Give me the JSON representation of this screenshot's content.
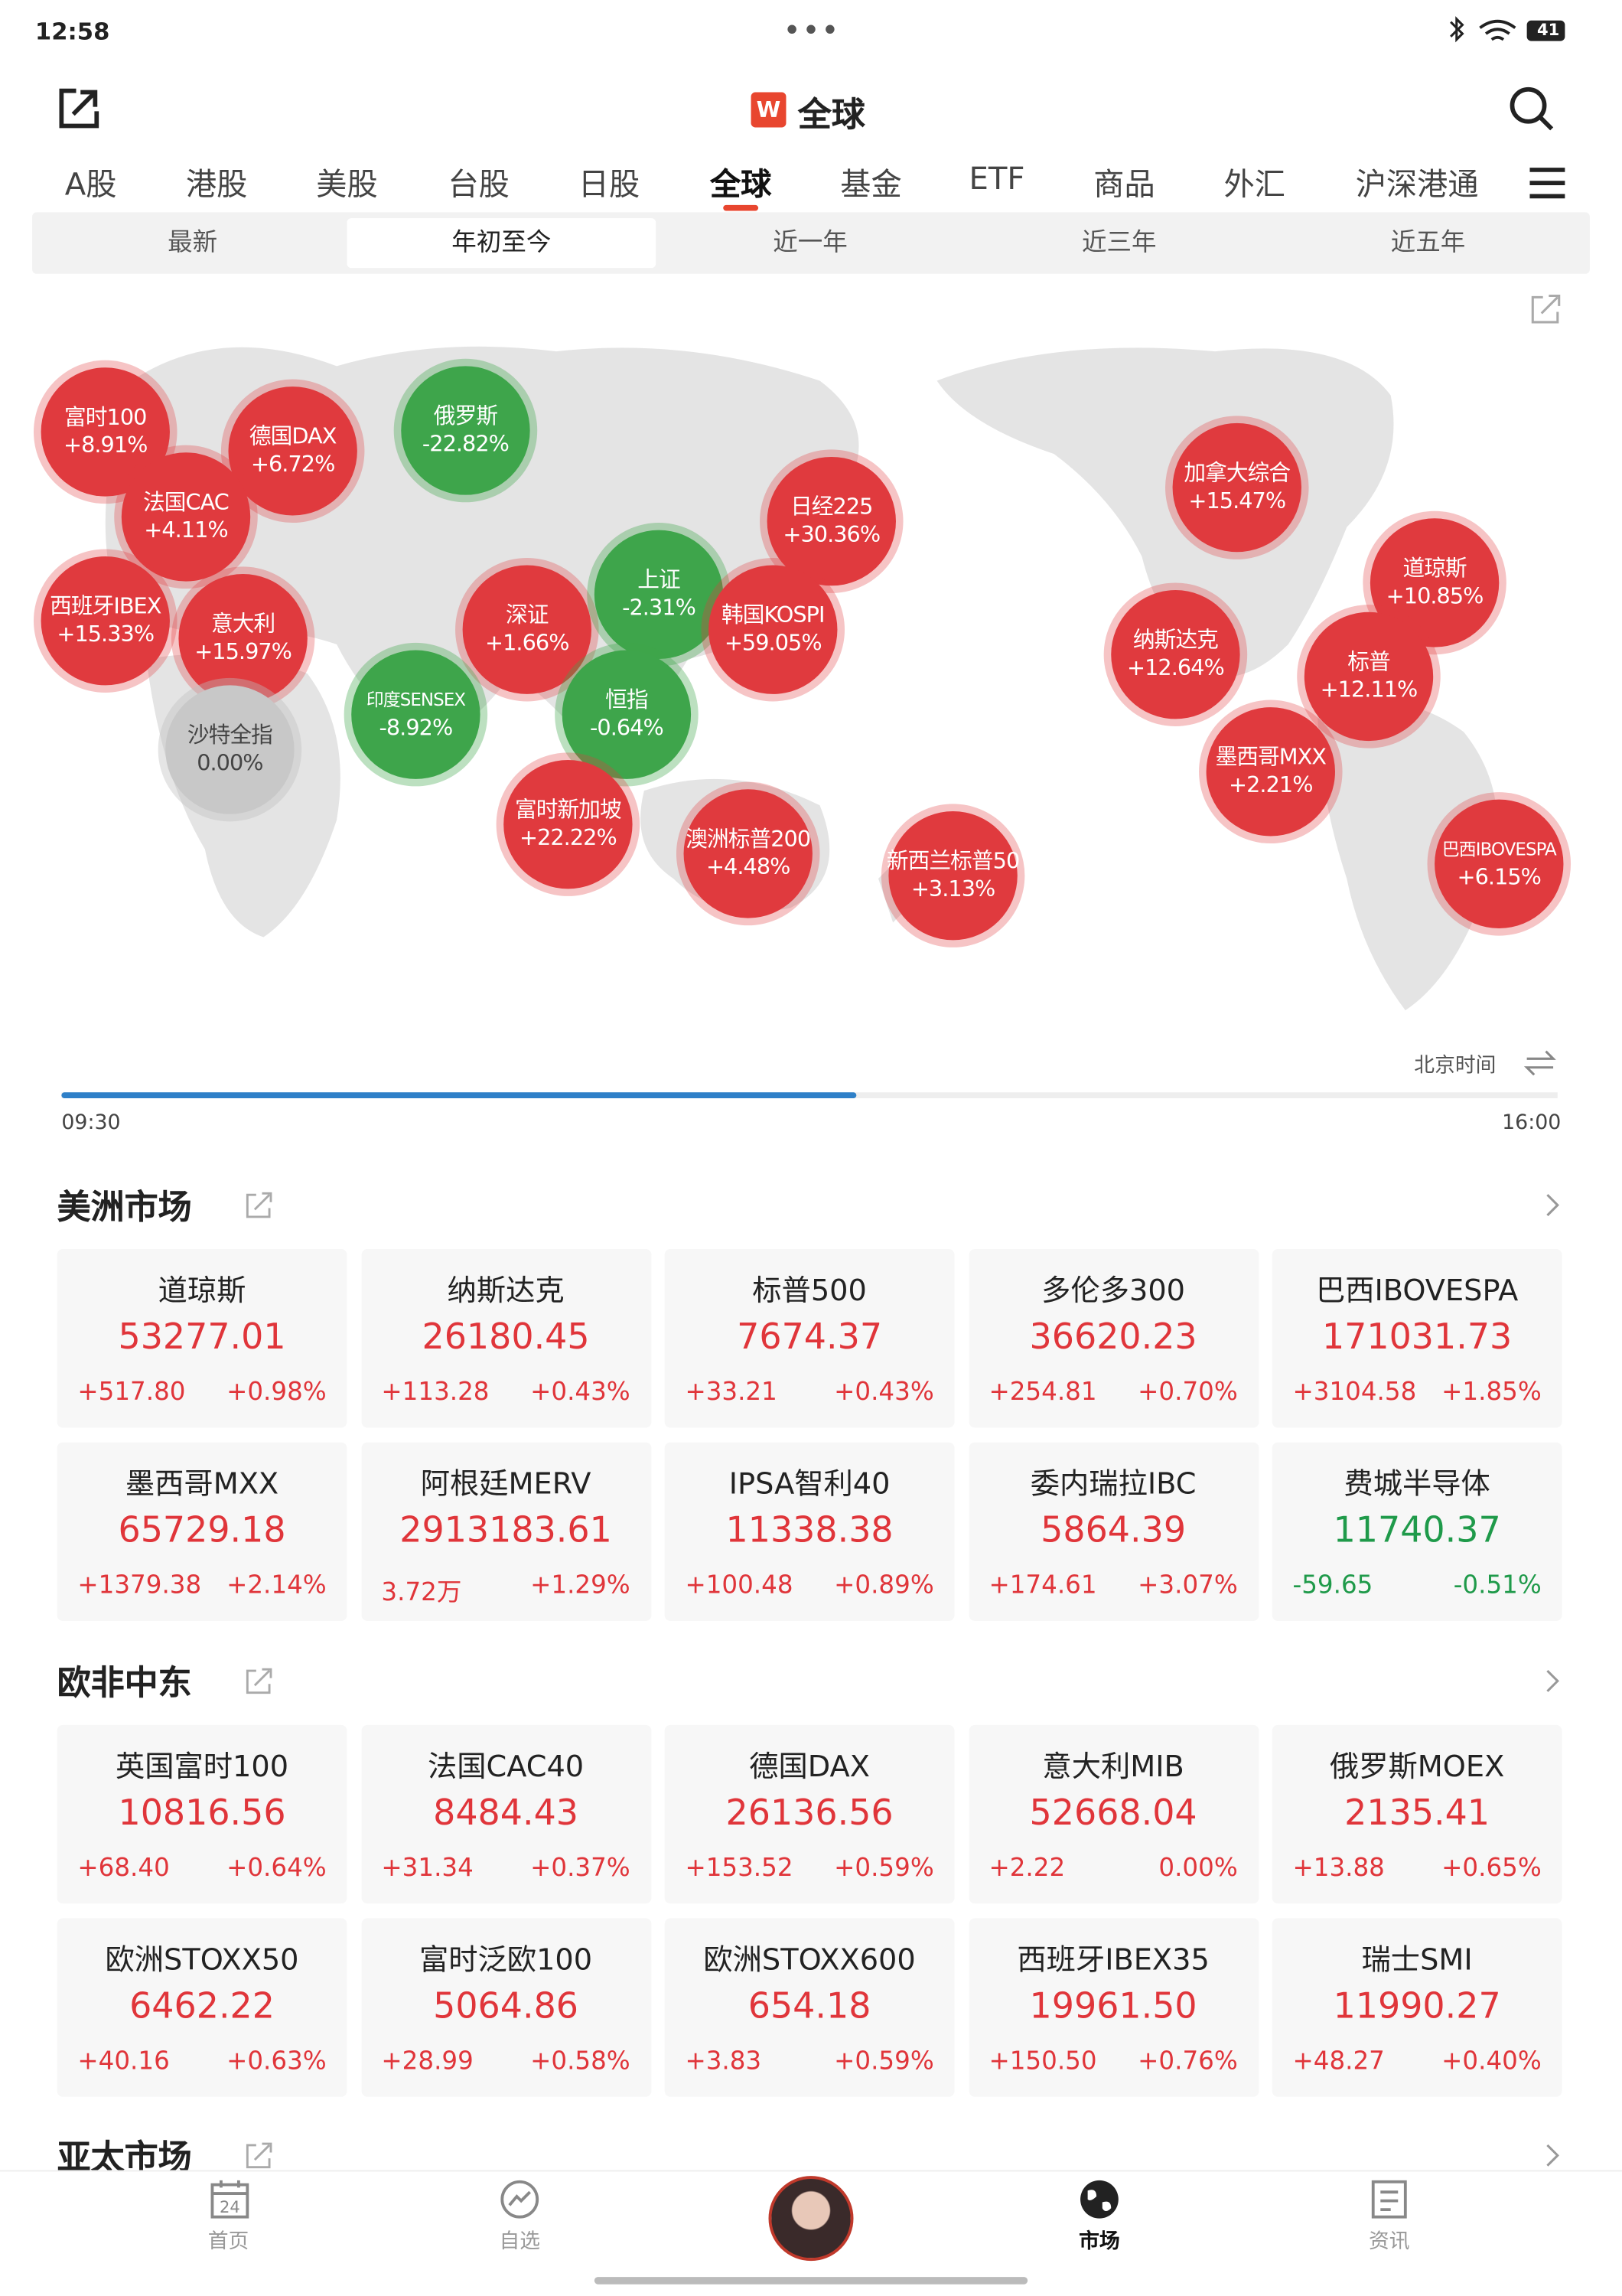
{
  "status": {
    "time": "12:58",
    "battery": "41"
  },
  "header": {
    "logo": "W",
    "title": "全球"
  },
  "tabs": [
    "A股",
    "港股",
    "美股",
    "台股",
    "日股",
    "全球",
    "基金",
    "ETF",
    "商品",
    "外汇",
    "沪深港通"
  ],
  "active_tab": 5,
  "subtabs": [
    "最新",
    "年初至今",
    "近一年",
    "近三年",
    "近五年"
  ],
  "active_subtab": 1,
  "map": {
    "bubbles": [
      {
        "name": "富时100",
        "change": "+8.91%"
      },
      {
        "name": "德国DAX",
        "change": "+6.72%"
      },
      {
        "name": "俄罗斯",
        "change": "-22.82%"
      },
      {
        "name": "法国CAC",
        "change": "+4.11%"
      },
      {
        "name": "西班牙IBEX",
        "change": "+15.33%"
      },
      {
        "name": "意大利",
        "change": "+15.97%"
      },
      {
        "name": "沙特全指",
        "change": "0.00%"
      },
      {
        "name": "深证",
        "change": "+1.66%"
      },
      {
        "name": "上证",
        "change": "-2.31%"
      },
      {
        "name": "日经225",
        "change": "+30.36%"
      },
      {
        "name": "韩国KOSPI",
        "change": "+59.05%"
      },
      {
        "name": "印度SENSEX",
        "change": "-8.92%"
      },
      {
        "name": "恒指",
        "change": "-0.64%"
      },
      {
        "name": "富时新加坡",
        "change": "+22.22%"
      },
      {
        "name": "澳洲标普200",
        "change": "+4.48%"
      },
      {
        "name": "新西兰标普50",
        "change": "+3.13%"
      },
      {
        "name": "加拿大综合",
        "change": "+15.47%"
      },
      {
        "name": "道琼斯",
        "change": "+10.85%"
      },
      {
        "name": "纳斯达克",
        "change": "+12.64%"
      },
      {
        "name": "标普",
        "change": "+12.11%"
      },
      {
        "name": "墨西哥MXX",
        "change": "+2.21%"
      },
      {
        "name": "巴西IBOVESPA",
        "change": "+6.15%"
      }
    ]
  },
  "timeline": {
    "zone": "北京时间",
    "start": "09:30",
    "end": "16:00"
  },
  "sections": [
    {
      "title": "美洲市场",
      "cards": [
        {
          "name": "道琼斯",
          "price": "53277.01",
          "change": "+517.80",
          "pct": "+0.98%"
        },
        {
          "name": "纳斯达克",
          "price": "26180.45",
          "change": "+113.28",
          "pct": "+0.43%"
        },
        {
          "name": "标普500",
          "price": "7674.37",
          "change": "+33.21",
          "pct": "+0.43%"
        },
        {
          "name": "多伦多300",
          "price": "36620.23",
          "change": "+254.81",
          "pct": "+0.70%"
        },
        {
          "name": "巴西IBOVESPA",
          "price": "171031.73",
          "change": "+3104.58",
          "pct": "+1.85%"
        },
        {
          "name": "墨西哥MXX",
          "price": "65729.18",
          "change": "+1379.38",
          "pct": "+2.14%"
        },
        {
          "name": "阿根廷MERV",
          "price": "2913183.61",
          "change": "3.72万",
          "pct": "+1.29%"
        },
        {
          "name": "IPSA智利40",
          "price": "11338.38",
          "change": "+100.48",
          "pct": "+0.89%"
        },
        {
          "name": "委内瑞拉IBC",
          "price": "5864.39",
          "change": "+174.61",
          "pct": "+3.07%"
        },
        {
          "name": "费城半导体",
          "price": "11740.37",
          "change": "-59.65",
          "pct": "-0.51%"
        }
      ]
    },
    {
      "title": "欧非中东",
      "cards": [
        {
          "name": "英国富时100",
          "price": "10816.56",
          "change": "+68.40",
          "pct": "+0.64%"
        },
        {
          "name": "法国CAC40",
          "price": "8484.43",
          "change": "+31.34",
          "pct": "+0.37%"
        },
        {
          "name": "德国DAX",
          "price": "26136.56",
          "change": "+153.52",
          "pct": "+0.59%"
        },
        {
          "name": "意大利MIB",
          "price": "52668.04",
          "change": "+2.22",
          "pct": "0.00%"
        },
        {
          "name": "俄罗斯MOEX",
          "price": "2135.41",
          "change": "+13.88",
          "pct": "+0.65%"
        },
        {
          "name": "欧洲STOXX50",
          "price": "6462.22",
          "change": "+40.16",
          "pct": "+0.63%"
        },
        {
          "name": "富时泛欧100",
          "price": "5064.86",
          "change": "+28.99",
          "pct": "+0.58%"
        },
        {
          "name": "欧洲STOXX600",
          "price": "654.18",
          "change": "+3.83",
          "pct": "+0.59%"
        },
        {
          "name": "西班牙IBEX35",
          "price": "19961.50",
          "change": "+150.50",
          "pct": "+0.76%"
        },
        {
          "name": "瑞士SMI",
          "price": "11990.27",
          "change": "+48.27",
          "pct": "+0.40%"
        }
      ]
    },
    {
      "title": "亚太市场",
      "cards": []
    }
  ],
  "nav": [
    "首页",
    "自选",
    "",
    "市场",
    "资讯"
  ],
  "active_nav": 3
}
